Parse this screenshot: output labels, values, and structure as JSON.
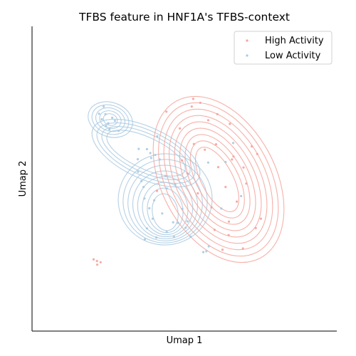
{
  "chart_data": {
    "type": "scatter",
    "title": "TFBS feature in HNF1A's TFBS-context",
    "xlabel": "Umap 1",
    "ylabel": "Umap 2",
    "xticks": [],
    "yticks": [],
    "xlim": [
      0,
      10
    ],
    "ylim": [
      0,
      10
    ],
    "legend_position": "top-right",
    "overlay": "kde-contours",
    "series": [
      {
        "name": "High Activity",
        "color": "#f4a39a",
        "points": [
          [
            4.41,
            7.2
          ],
          [
            5.24,
            7.37
          ],
          [
            5.29,
            7.62
          ],
          [
            5.52,
            7.49
          ],
          [
            5.78,
            6.92
          ],
          [
            6.04,
            6.13
          ],
          [
            5.31,
            6.14
          ],
          [
            5.1,
            5.17
          ],
          [
            5.44,
            4.52
          ],
          [
            6.11,
            5.38
          ],
          [
            6.35,
            4.73
          ],
          [
            5.89,
            4.06
          ],
          [
            6.46,
            3.59
          ],
          [
            7.34,
            3.38
          ],
          [
            7.51,
            3.69
          ],
          [
            6.72,
            4.25
          ],
          [
            7.03,
            4.84
          ],
          [
            6.56,
            5.63
          ],
          [
            6.94,
            5.37
          ],
          [
            7.21,
            6.06
          ],
          [
            6.49,
            6.8
          ],
          [
            4.85,
            6.65
          ],
          [
            6.08,
            7.12
          ],
          [
            6.61,
            5.73
          ],
          [
            7.39,
            5.81
          ],
          [
            6.92,
            2.71
          ],
          [
            6.25,
            2.67
          ],
          [
            6.45,
            3.15
          ],
          [
            5.99,
            3.32
          ],
          [
            4.1,
            4.6
          ],
          [
            2.13,
            2.3
          ],
          [
            2.02,
            2.35
          ],
          [
            2.25,
            2.26
          ],
          [
            2.14,
            2.18
          ],
          [
            5.67,
            5.95
          ],
          [
            4.92,
            5.6
          ]
        ]
      },
      {
        "name": "Low Activity",
        "color": "#a9c9e1",
        "points": [
          [
            2.35,
            7.37
          ],
          [
            2.41,
            7.12
          ],
          [
            2.29,
            6.95
          ],
          [
            2.5,
            6.82
          ],
          [
            2.63,
            7.0
          ],
          [
            2.43,
            6.73
          ],
          [
            2.2,
            7.13
          ],
          [
            2.54,
            6.62
          ],
          [
            2.84,
            6.57
          ],
          [
            2.72,
            6.9
          ],
          [
            3.5,
            5.98
          ],
          [
            3.77,
            5.97
          ],
          [
            4.11,
            6.39
          ],
          [
            3.91,
            5.68
          ],
          [
            4.38,
            5.09
          ],
          [
            4.7,
            4.81
          ],
          [
            4.27,
            3.86
          ],
          [
            3.96,
            3.69
          ],
          [
            3.85,
            4.03
          ],
          [
            3.77,
            3.37
          ],
          [
            4.01,
            4.29
          ],
          [
            4.63,
            3.57
          ],
          [
            4.42,
            3.25
          ],
          [
            3.7,
            3.01
          ],
          [
            4.08,
            3.07
          ],
          [
            4.66,
            3.09
          ],
          [
            4.79,
            3.55
          ],
          [
            4.19,
            5.63
          ],
          [
            3.66,
            4.73
          ],
          [
            3.47,
            5.64
          ],
          [
            3.88,
            5.84
          ],
          [
            3.48,
            5.23
          ],
          [
            5.1,
            3.6
          ],
          [
            4.93,
            4.01
          ],
          [
            5.2,
            3.1
          ],
          [
            5.8,
            2.78
          ],
          [
            5.72,
            2.62
          ],
          [
            5.62,
            2.59
          ],
          [
            5.04,
            3.39
          ],
          [
            6.35,
            5.55
          ],
          [
            6.86,
            4.43
          ],
          [
            6.21,
            4.02
          ],
          [
            5.78,
            5.53
          ],
          [
            6.6,
            6.17
          ],
          [
            4.42,
            4.68
          ],
          [
            3.59,
            4.92
          ],
          [
            3.69,
            4.35
          ],
          [
            4.04,
            5.78
          ]
        ]
      }
    ]
  }
}
